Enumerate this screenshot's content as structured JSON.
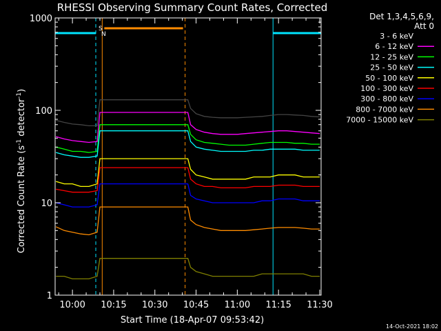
{
  "chart_data": {
    "type": "line",
    "title": "RHESSI Observing Summary Count Rates, Corrected",
    "xlabel": "Start Time (18-Apr-07 09:53:42)",
    "ylabel_main": "Corrected Count Rate (s",
    "ylabel_sup1": "-1",
    "ylabel_mid": " detector",
    "ylabel_sup2": "-1",
    "ylabel_end": ")",
    "yscale": "log",
    "ylim": [
      1,
      1000
    ],
    "y_ticks": [
      {
        "v": 1,
        "label": "1"
      },
      {
        "v": 10,
        "label": "10"
      },
      {
        "v": 100,
        "label": "100"
      },
      {
        "v": 1000,
        "label": "1000"
      }
    ],
    "xlim": [
      "09:53:42",
      "11:30:30"
    ],
    "x_ticks": [
      "10:00",
      "10:15",
      "10:30",
      "10:45",
      "11:00",
      "11:15",
      "11:30"
    ],
    "legend_header": [
      "Det 1,3,4,5,6,9,",
      "Att 0"
    ],
    "legend_position": "right, outside plot",
    "footer_date": "14-Oct-2021 18:02",
    "markers": [
      {
        "label": "S",
        "color": "#ff8c00"
      },
      {
        "label": "N",
        "color": "#00e5ff"
      }
    ],
    "night_intervals": [
      [
        "09:53:42",
        "10:08:30"
      ],
      [
        "11:13:00",
        "11:30:30"
      ]
    ],
    "saa_interval": [
      "10:10:50",
      "10:41:00"
    ],
    "gap": [
      "10:11:00",
      "10:41:30"
    ],
    "series": [
      {
        "name": "3 - 6 keV",
        "color": "#000000",
        "t": [
          "09:54",
          "09:57",
          "10:00",
          "10:03",
          "10:06",
          "10:09",
          "10:10",
          "10:42",
          "10:43",
          "10:45",
          "10:48",
          "10:51",
          "10:54",
          "10:57",
          "11:00",
          "11:03",
          "11:06",
          "11:09",
          "11:12",
          "11:15",
          "11:18",
          "11:21",
          "11:24",
          "11:27",
          "11:30"
        ],
        "values": [
          78,
          74,
          71,
          70,
          68,
          68,
          130,
          130,
          105,
          92,
          86,
          84,
          83,
          83,
          83,
          84,
          85,
          86,
          88,
          90,
          90,
          89,
          88,
          86,
          85
        ]
      },
      {
        "name": "6 - 12 keV",
        "color": "#ff00ff",
        "t": [
          "09:54",
          "09:57",
          "10:00",
          "10:03",
          "10:06",
          "10:09",
          "10:10",
          "10:42",
          "10:43",
          "10:45",
          "10:48",
          "10:51",
          "10:54",
          "10:57",
          "11:00",
          "11:03",
          "11:06",
          "11:09",
          "11:12",
          "11:15",
          "11:18",
          "11:21",
          "11:24",
          "11:27",
          "11:30"
        ],
        "values": [
          52,
          49,
          47,
          46,
          45,
          46,
          95,
          95,
          70,
          62,
          58,
          56,
          55,
          55,
          55,
          56,
          57,
          58,
          59,
          60,
          60,
          59,
          58,
          57,
          56
        ]
      },
      {
        "name": "12 - 25 keV",
        "color": "#00ff00",
        "t": [
          "09:54",
          "09:57",
          "10:00",
          "10:03",
          "10:06",
          "10:09",
          "10:10",
          "10:42",
          "10:43",
          "10:45",
          "10:48",
          "10:51",
          "10:54",
          "10:57",
          "11:00",
          "11:03",
          "11:06",
          "11:09",
          "11:12",
          "11:15",
          "11:18",
          "11:21",
          "11:24",
          "11:27",
          "11:30"
        ],
        "values": [
          40,
          38,
          36,
          36,
          35,
          36,
          70,
          70,
          55,
          48,
          45,
          44,
          43,
          42,
          42,
          42,
          43,
          44,
          45,
          45,
          45,
          44,
          44,
          43,
          43
        ]
      },
      {
        "name": "25 - 50 keV",
        "color": "#00ffff",
        "t": [
          "09:54",
          "09:57",
          "10:00",
          "10:03",
          "10:06",
          "10:09",
          "10:10",
          "10:42",
          "10:43",
          "10:45",
          "10:48",
          "10:51",
          "10:54",
          "10:57",
          "11:00",
          "11:03",
          "11:06",
          "11:09",
          "11:12",
          "11:15",
          "11:18",
          "11:21",
          "11:24",
          "11:27",
          "11:30"
        ],
        "values": [
          35,
          33,
          32,
          31,
          31,
          32,
          60,
          60,
          46,
          40,
          38,
          37,
          36,
          36,
          36,
          36,
          37,
          37,
          38,
          38,
          38,
          38,
          37,
          37,
          37
        ]
      },
      {
        "name": "50 - 100 keV",
        "color": "#ffff00",
        "t": [
          "09:54",
          "09:57",
          "10:00",
          "10:03",
          "10:06",
          "10:09",
          "10:10",
          "10:42",
          "10:43",
          "10:45",
          "10:48",
          "10:51",
          "10:54",
          "10:57",
          "11:00",
          "11:03",
          "11:06",
          "11:09",
          "11:12",
          "11:15",
          "11:18",
          "11:21",
          "11:24",
          "11:27",
          "11:30"
        ],
        "values": [
          17,
          16,
          16,
          15,
          15,
          16,
          30,
          30,
          23,
          20,
          19,
          18,
          18,
          18,
          18,
          18,
          19,
          19,
          19,
          20,
          20,
          20,
          19,
          19,
          19
        ]
      },
      {
        "name": "100 - 300 keV",
        "color": "#ff0000",
        "t": [
          "09:54",
          "09:57",
          "10:00",
          "10:03",
          "10:06",
          "10:09",
          "10:10",
          "10:42",
          "10:43",
          "10:45",
          "10:48",
          "10:51",
          "10:54",
          "10:57",
          "11:00",
          "11:03",
          "11:06",
          "11:09",
          "11:12",
          "11:15",
          "11:18",
          "11:21",
          "11:24",
          "11:27",
          "11:30"
        ],
        "values": [
          14,
          13.5,
          13,
          13,
          13,
          13.5,
          24,
          24,
          18,
          16,
          15,
          15,
          14.5,
          14.5,
          14.5,
          14.5,
          15,
          15,
          15,
          15.5,
          15.5,
          15.5,
          15,
          15,
          15
        ]
      },
      {
        "name": "300 - 800 keV",
        "color": "#0000ff",
        "t": [
          "09:54",
          "09:57",
          "10:00",
          "10:03",
          "10:06",
          "10:09",
          "10:10",
          "10:42",
          "10:43",
          "10:45",
          "10:48",
          "10:51",
          "10:54",
          "10:57",
          "11:00",
          "11:03",
          "11:06",
          "11:09",
          "11:12",
          "11:15",
          "11:18",
          "11:21",
          "11:24",
          "11:27",
          "11:30"
        ],
        "values": [
          10,
          9.5,
          9,
          9,
          9,
          9.5,
          16,
          16,
          12,
          11,
          10.5,
          10,
          10,
          10,
          10,
          10,
          10,
          10.5,
          10.5,
          11,
          11,
          11,
          10.5,
          10.5,
          10.5
        ]
      },
      {
        "name": "800 - 7000 keV",
        "color": "#ff8c00",
        "t": [
          "09:54",
          "09:57",
          "10:00",
          "10:03",
          "10:06",
          "10:09",
          "10:10",
          "10:42",
          "10:43",
          "10:45",
          "10:48",
          "10:51",
          "10:54",
          "10:57",
          "11:00",
          "11:03",
          "11:06",
          "11:09",
          "11:12",
          "11:15",
          "11:18",
          "11:21",
          "11:24",
          "11:27",
          "11:30"
        ],
        "values": [
          5.5,
          5,
          4.8,
          4.6,
          4.5,
          4.8,
          9,
          9,
          6.5,
          5.8,
          5.4,
          5.2,
          5,
          5,
          5,
          5,
          5.1,
          5.2,
          5.3,
          5.4,
          5.4,
          5.4,
          5.3,
          5.2,
          5.2
        ]
      },
      {
        "name": "7000 - 15000 keV",
        "color": "#808000",
        "t": [
          "09:54",
          "09:57",
          "10:00",
          "10:03",
          "10:06",
          "10:09",
          "10:10",
          "10:42",
          "10:43",
          "10:45",
          "10:48",
          "10:51",
          "10:54",
          "10:57",
          "11:00",
          "11:03",
          "11:06",
          "11:09",
          "11:12",
          "11:15",
          "11:18",
          "11:21",
          "11:24",
          "11:27",
          "11:30"
        ],
        "values": [
          1.6,
          1.6,
          1.5,
          1.5,
          1.5,
          1.6,
          2.5,
          2.5,
          2,
          1.8,
          1.7,
          1.6,
          1.6,
          1.6,
          1.6,
          1.6,
          1.6,
          1.7,
          1.7,
          1.7,
          1.7,
          1.7,
          1.7,
          1.6,
          1.6
        ]
      }
    ]
  }
}
